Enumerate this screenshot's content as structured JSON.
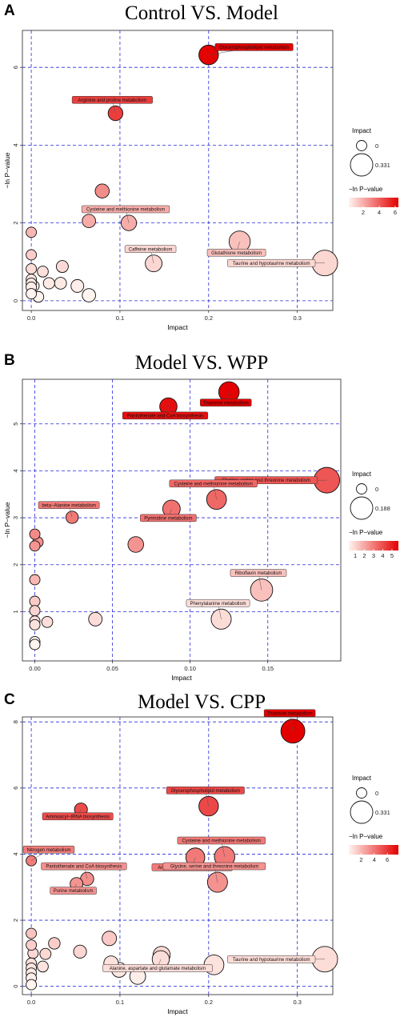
{
  "chart_data": [
    {
      "panel": "A",
      "type": "scatter",
      "title": "Control VS. Model",
      "xlabel": "Impact",
      "ylabel": "−ln P−value",
      "xlim": [
        -0.01,
        0.34
      ],
      "ylim": [
        -0.25,
        6.95
      ],
      "xticks": [
        0,
        0.1,
        0.2,
        0.3
      ],
      "xtick_labels": [
        "0.0",
        "0.1",
        "0.2",
        "0.3"
      ],
      "yticks": [
        0,
        2,
        4,
        6
      ],
      "grid": true,
      "legend": {
        "size_title": "Impact",
        "size_values": [
          "0",
          "0.331"
        ],
        "color_title": "−ln P−value",
        "color_ticks": [
          "2",
          "4",
          "6"
        ],
        "color_min": 0.2,
        "color_max": 6.4,
        "placement": "right"
      },
      "points": [
        {
          "x": 0.2,
          "y": 6.32,
          "label": "Glycerophospholipid metabolism",
          "label_side": "right"
        },
        {
          "x": 0.095,
          "y": 4.82,
          "label": "Arginine and proline metabolism",
          "label_side": "above"
        },
        {
          "x": 0.08,
          "y": 2.82
        },
        {
          "x": 0.11,
          "y": 2.0,
          "label": "Cysteine and methionine metabolism",
          "label_side": "above"
        },
        {
          "x": 0.065,
          "y": 2.05
        },
        {
          "x": 0.235,
          "y": 1.52,
          "label": "Glutathione metabolism",
          "label_side": "below"
        },
        {
          "x": 0.138,
          "y": 0.96,
          "label": "Caffeine metabolism",
          "label_side": "above"
        },
        {
          "x": 0.331,
          "y": 0.97,
          "label": "Taurine and hypotaurine metabolism",
          "label_side": "left"
        },
        {
          "x": 0.0,
          "y": 1.76
        },
        {
          "x": 0.0,
          "y": 1.18
        },
        {
          "x": 0.0,
          "y": 0.82
        },
        {
          "x": 0.0,
          "y": 0.55
        },
        {
          "x": 0.0,
          "y": 0.45
        },
        {
          "x": 0.0,
          "y": 0.35
        },
        {
          "x": 0.0,
          "y": 0.18
        },
        {
          "x": 0.003,
          "y": 0.38
        },
        {
          "x": 0.008,
          "y": 0.1
        },
        {
          "x": 0.013,
          "y": 0.75
        },
        {
          "x": 0.02,
          "y": 0.45
        },
        {
          "x": 0.033,
          "y": 0.45
        },
        {
          "x": 0.035,
          "y": 0.88
        },
        {
          "x": 0.052,
          "y": 0.38
        },
        {
          "x": 0.065,
          "y": 0.14
        }
      ]
    },
    {
      "panel": "B",
      "type": "scatter",
      "title": "Model VS. WPP",
      "xlabel": "Impact",
      "ylabel": "−ln P−value",
      "xlim": [
        -0.008,
        0.197
      ],
      "ylim": [
        -0.05,
        5.95
      ],
      "xticks": [
        0,
        0.05,
        0.1,
        0.15
      ],
      "xtick_labels": [
        "0.00",
        "0.05",
        "0.10",
        "0.15"
      ],
      "yticks": [
        1,
        2,
        3,
        4,
        5
      ],
      "grid": true,
      "legend": {
        "size_title": "Impact",
        "size_values": [
          "0",
          "0.188"
        ],
        "color_title": "−ln P−value",
        "color_ticks": [
          "1",
          "2",
          "3",
          "4",
          "5"
        ],
        "color_min": 0.3,
        "color_max": 5.7,
        "placement": "right"
      },
      "points": [
        {
          "x": 0.125,
          "y": 5.68,
          "label": "Thiamine metabolism",
          "label_side": "below"
        },
        {
          "x": 0.086,
          "y": 5.37,
          "label": "Pantothenate and CoA biosynthesis",
          "label_side": "below"
        },
        {
          "x": 0.188,
          "y": 3.8,
          "label": "Glycine, serine and threonine metabolism",
          "label_side": "left"
        },
        {
          "x": 0.117,
          "y": 3.39,
          "label": "Cysteine and methionine metabolism",
          "label_side": "above"
        },
        {
          "x": 0.088,
          "y": 3.19,
          "label": "Pyrimidine metabolism",
          "label_side": "below"
        },
        {
          "x": 0.024,
          "y": 3.01,
          "label": "beta−Alanine metabolism",
          "label_side": "above"
        },
        {
          "x": 0.065,
          "y": 2.43
        },
        {
          "x": 0.146,
          "y": 1.46,
          "label": "Riboflavin metabolism",
          "label_side": "above"
        },
        {
          "x": 0.12,
          "y": 0.84,
          "label": "Phenylalanine metabolism",
          "label_side": "above"
        },
        {
          "x": 0.039,
          "y": 0.84
        },
        {
          "x": 0.0,
          "y": 2.65
        },
        {
          "x": 0.0,
          "y": 2.4
        },
        {
          "x": 0.002,
          "y": 2.48
        },
        {
          "x": 0.0,
          "y": 1.68
        },
        {
          "x": 0.0,
          "y": 1.22
        },
        {
          "x": 0.0,
          "y": 1.02
        },
        {
          "x": 0.0,
          "y": 0.8
        },
        {
          "x": 0.0,
          "y": 0.72
        },
        {
          "x": 0.008,
          "y": 0.78
        },
        {
          "x": 0.0,
          "y": 0.36
        },
        {
          "x": 0.0,
          "y": 0.3
        }
      ]
    },
    {
      "panel": "C",
      "type": "scatter",
      "title": "Model VS. CPP",
      "xlabel": "Impact",
      "ylabel": "",
      "xlim": [
        -0.01,
        0.34
      ],
      "ylim": [
        -0.25,
        8.15
      ],
      "xticks": [
        0,
        0.1,
        0.2,
        0.3
      ],
      "xtick_labels": [
        "0.0",
        "0.1",
        "0.2",
        "0.3"
      ],
      "yticks": [
        0,
        2,
        4,
        6,
        8
      ],
      "grid": true,
      "legend": {
        "size_title": "Impact",
        "size_values": [
          "0",
          "0.331"
        ],
        "color_title": "−ln P−value",
        "color_ticks": [
          "2",
          "4",
          "6"
        ],
        "color_min": 0.1,
        "color_max": 7.7,
        "placement": "right"
      },
      "points": [
        {
          "x": 0.295,
          "y": 7.72,
          "label": "Thiamine metabolism",
          "label_side": "above"
        },
        {
          "x": 0.2,
          "y": 5.45,
          "label": "Glycerophospholipid metabolism",
          "label_side": "above"
        },
        {
          "x": 0.056,
          "y": 5.35,
          "label": "Aminoacyl−tRNA biosynthesis",
          "label_side": "below"
        },
        {
          "x": 0.218,
          "y": 3.92,
          "label": "Cysteine and methionine metabolism",
          "label_side": "above"
        },
        {
          "x": 0.185,
          "y": 3.9,
          "label": "Arginine and proline metabolism",
          "label_side": "below"
        },
        {
          "x": 0.21,
          "y": 3.15,
          "label": "Glycine, serine and threonine metabolism",
          "label_side": "above"
        },
        {
          "x": 0.0,
          "y": 3.8,
          "label": "Nitrogen metabolism",
          "label_side": "above"
        },
        {
          "x": 0.063,
          "y": 3.25,
          "label": "Pantothenate and CoA biosynthesis",
          "label_side": "above"
        },
        {
          "x": 0.051,
          "y": 3.1,
          "label": "Purine metabolism",
          "label_side": "below"
        },
        {
          "x": 0.331,
          "y": 0.82,
          "label": "Taurine and hypotaurine metabolism",
          "label_side": "left"
        },
        {
          "x": 0.146,
          "y": 0.82,
          "label": "Alanine, aspartate and glutamate metabolism",
          "label_side": "below"
        },
        {
          "x": 0.147,
          "y": 0.95
        },
        {
          "x": 0.206,
          "y": 0.65
        },
        {
          "x": 0.088,
          "y": 1.45
        },
        {
          "x": 0.09,
          "y": 0.7
        },
        {
          "x": 0.099,
          "y": 0.5
        },
        {
          "x": 0.12,
          "y": 0.3
        },
        {
          "x": 0.055,
          "y": 1.05
        },
        {
          "x": 0.026,
          "y": 1.3
        },
        {
          "x": 0.016,
          "y": 0.98
        },
        {
          "x": 0.013,
          "y": 0.6
        },
        {
          "x": 0.0,
          "y": 1.6
        },
        {
          "x": 0.0,
          "y": 1.25
        },
        {
          "x": 0.002,
          "y": 1.0
        },
        {
          "x": 0.0,
          "y": 0.7
        },
        {
          "x": 0.0,
          "y": 0.55
        },
        {
          "x": 0.0,
          "y": 0.4
        },
        {
          "x": 0.0,
          "y": 0.25
        },
        {
          "x": 0.0,
          "y": 0.05
        }
      ]
    }
  ],
  "palette": {
    "low": "#fff4ef",
    "high": "#e30000",
    "grid": "#2b2bd8"
  }
}
